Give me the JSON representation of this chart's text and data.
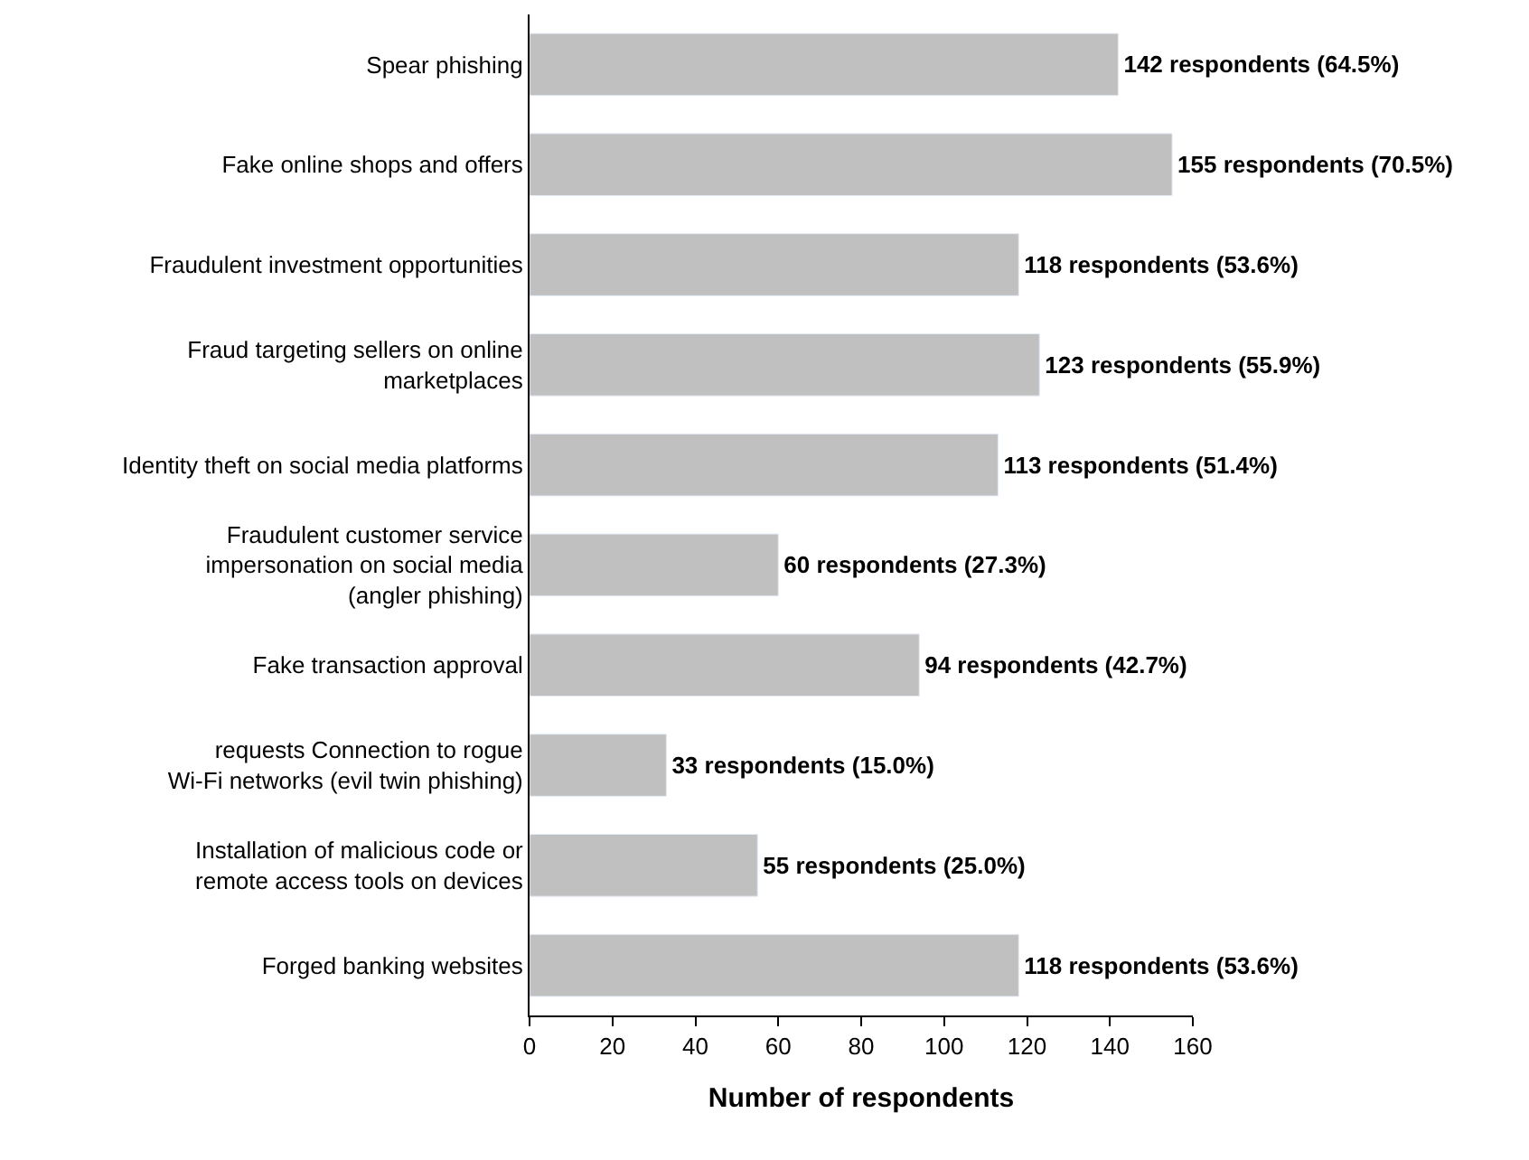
{
  "chart_data": {
    "type": "bar",
    "orientation": "horizontal",
    "xlabel": "Number of respondents",
    "categories": [
      "Spear phishing",
      "Fake online shops and offers",
      "Fraudulent investment opportunities",
      "Fraud targeting sellers on online\nmarketplaces",
      "Identity theft on social media platforms",
      "Fraudulent customer service\nimpersonation on social media\n(angler phishing)",
      "Fake transaction approval",
      "requests Connection to rogue\nWi-Fi networks (evil twin phishing)",
      "Installation of malicious code or\nremote access tools on devices",
      "Forged banking websites"
    ],
    "values": [
      142,
      155,
      118,
      123,
      113,
      60,
      94,
      33,
      55,
      118
    ],
    "value_labels": [
      "142 respondents (64.5%)",
      "155 respondents (70.5%)",
      "118 respondents (53.6%)",
      "123 respondents (55.9%)",
      "113 respondents (51.4%)",
      "60 respondents (27.3%)",
      "94 respondents (42.7%)",
      "33 respondents (15.0%)",
      "55 respondents (25.0%)",
      "118 respondents (53.6%)"
    ],
    "color": "#c0c0c0",
    "xlim": [
      0,
      160
    ],
    "xticks": [
      0,
      20,
      40,
      60,
      80,
      100,
      120,
      140,
      160
    ]
  }
}
